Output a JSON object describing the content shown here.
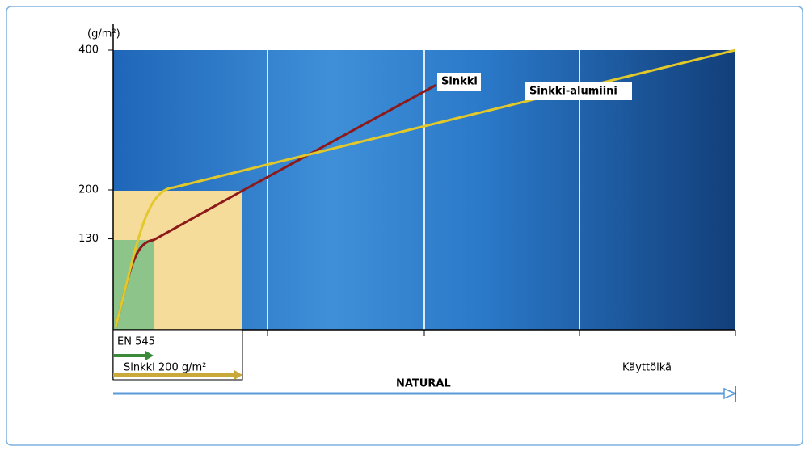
{
  "y_axis": {
    "label": "(g/m²)",
    "ylim": [
      0,
      400
    ],
    "yticks": [
      130,
      200,
      400
    ]
  },
  "series_labels": {
    "zinc": "Sinkki",
    "zinc_aluminium": "Sinkki-alumiini"
  },
  "bottom": {
    "standard": "EN 545",
    "coating": "Sinkki 200 g/m²",
    "natural": "NATURAL",
    "lifetime": "Käyttöikä"
  }
}
